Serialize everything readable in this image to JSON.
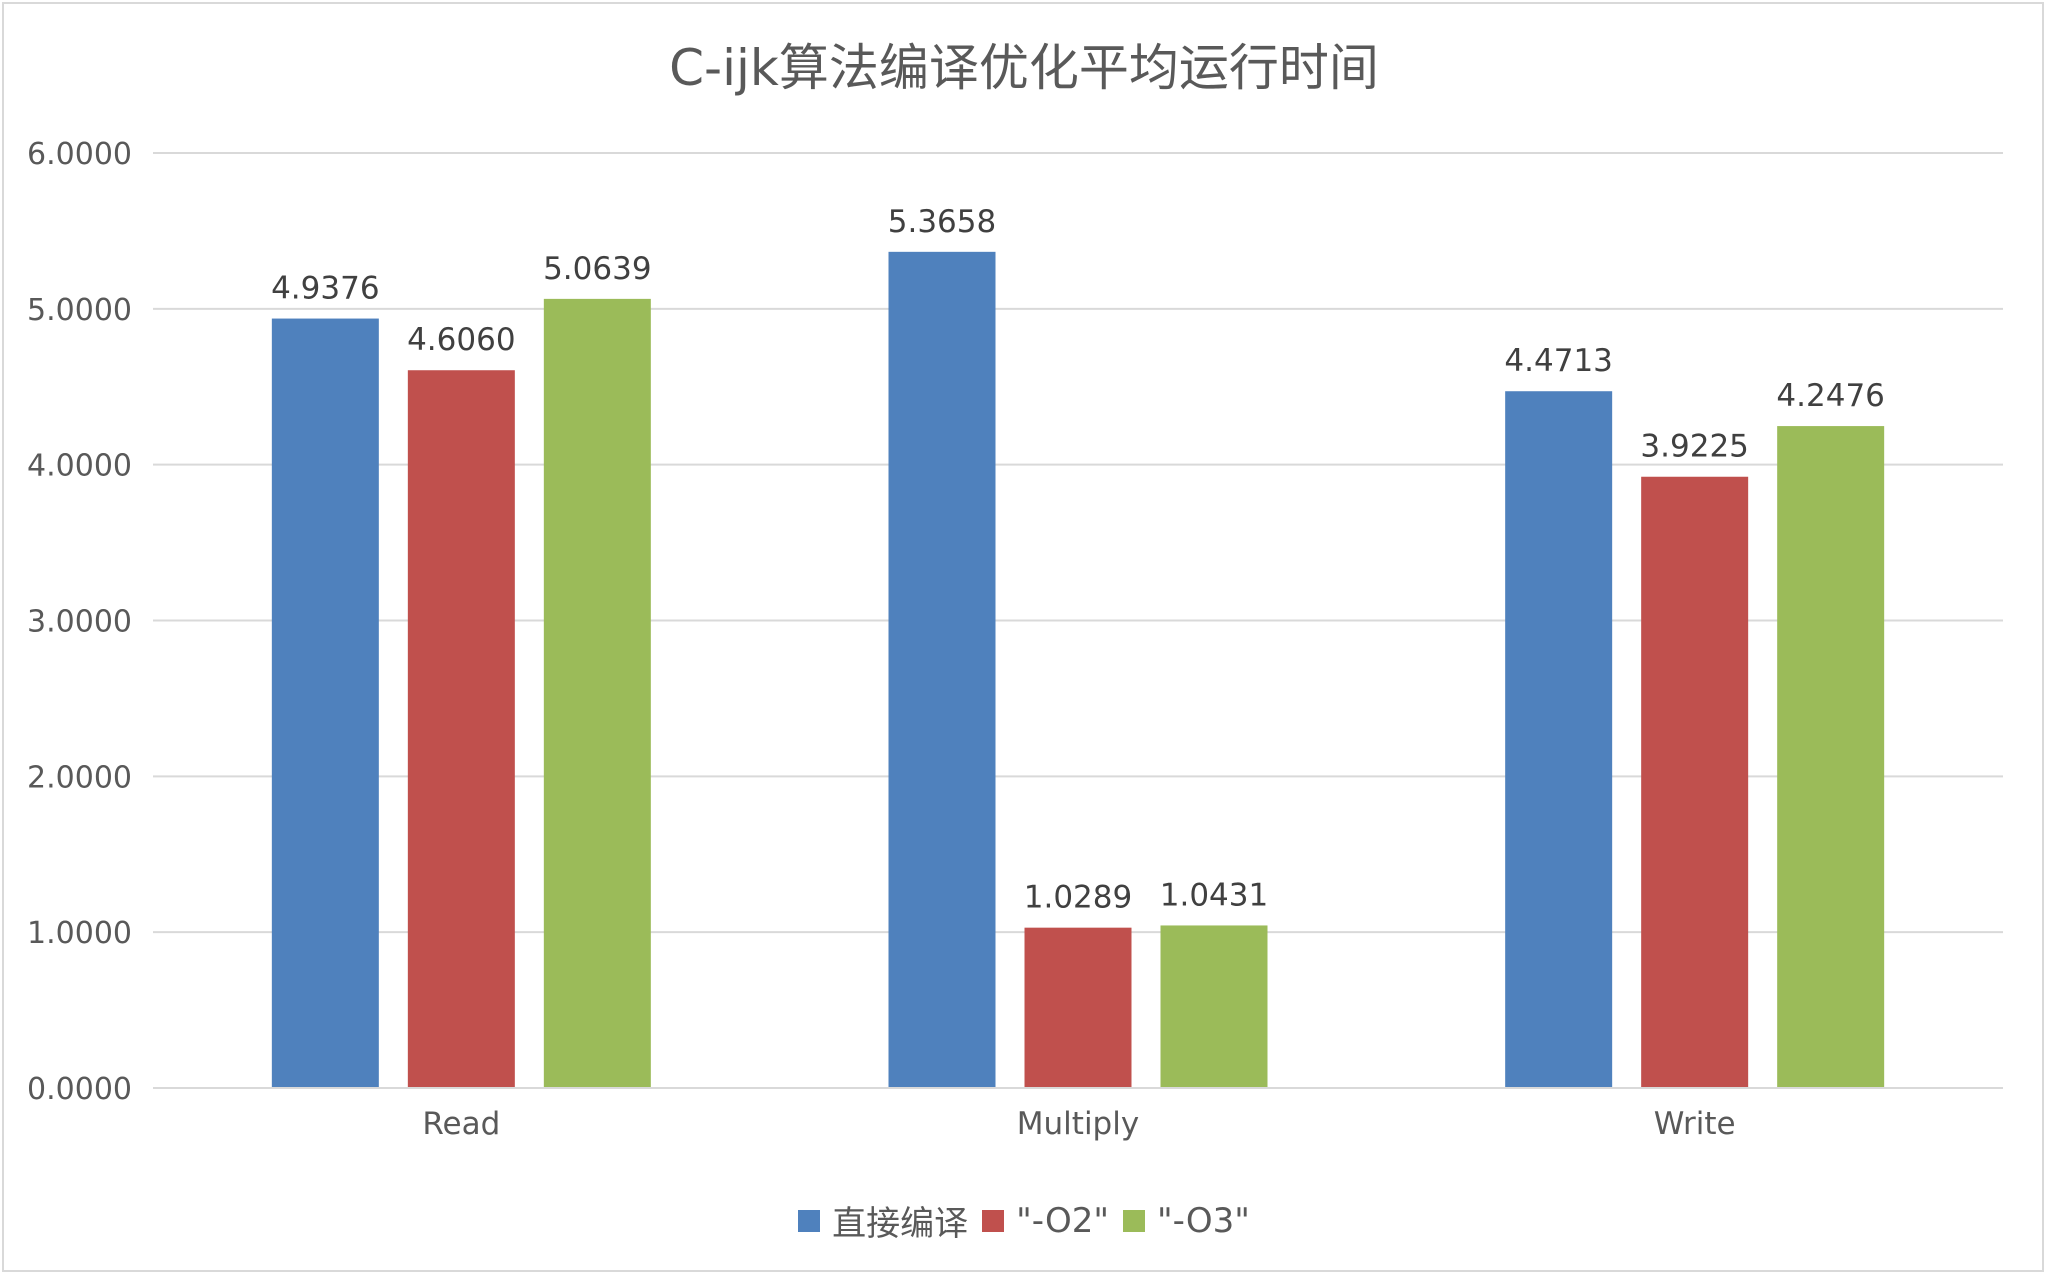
{
  "chart_data": {
    "type": "bar",
    "title": "C-ijk算法编译优化平均运行时间",
    "categories": [
      "Read",
      "Multiply",
      "Write"
    ],
    "series": [
      {
        "name": "直接编译",
        "color": "#4f81bd",
        "values": [
          4.9376,
          5.3658,
          4.4713
        ],
        "labels": [
          "4.9376",
          "5.3658",
          "4.4713"
        ]
      },
      {
        "name": "\"-O2\"",
        "color": "#c0504d",
        "values": [
          4.606,
          1.0289,
          3.9225
        ],
        "labels": [
          "4.6060",
          "1.0289",
          "3.9225"
        ]
      },
      {
        "name": "\"-O3\"",
        "color": "#9bbb59",
        "values": [
          5.0639,
          1.0431,
          4.2476
        ],
        "labels": [
          "5.0639",
          "1.0431",
          "4.2476"
        ]
      }
    ],
    "yticks": [
      "0.0000",
      "1.0000",
      "2.0000",
      "3.0000",
      "4.0000",
      "5.0000",
      "6.0000"
    ],
    "ylim": [
      0,
      6
    ],
    "grid": true,
    "legend": "bottom",
    "xlabel": "",
    "ylabel": ""
  }
}
